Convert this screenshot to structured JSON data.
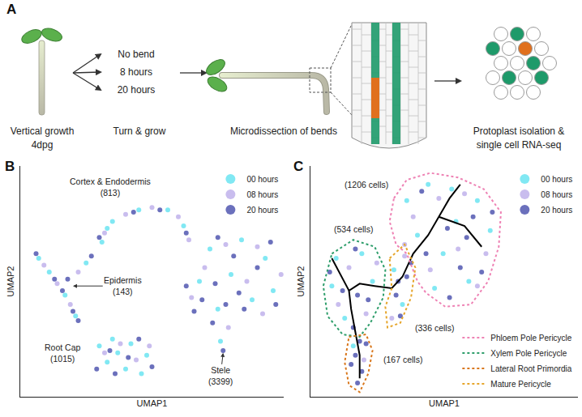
{
  "panel_labels": [
    "A",
    "B",
    "C"
  ],
  "diagram": {
    "vertical": [
      "Vertical growth",
      "4dpg"
    ],
    "conditions": [
      "No bend",
      "8 hours",
      "20 hours"
    ],
    "turn": [
      "Turn & grow"
    ],
    "dissect": [
      "Microdissection of bends"
    ],
    "sequencing": [
      "Protoplast isolation &",
      "single cell RNA-seq"
    ]
  },
  "chart_data": [
    {
      "type": "scatter",
      "xlabel": "UMAP1",
      "ylabel": "UMAP2",
      "xlim": [
        0,
        10
      ],
      "ylim": [
        0,
        10
      ],
      "xticks": [],
      "yticks": [],
      "tick_labels": false,
      "grid": false,
      "legend": "top right",
      "marker": "circle",
      "series": [
        {
          "name": "00 hours",
          "color": "#73e5f2",
          "x": [
            3.1,
            3.5,
            4.5,
            5.6,
            6.2,
            3.3,
            0.7,
            1.1,
            2.5,
            1.7,
            2.1,
            3.0,
            3.5,
            4.2,
            4.8,
            3.3,
            4.0,
            4.6,
            3.7,
            7.2,
            8.4,
            9.3,
            6.8,
            8.0,
            9.6,
            7.5,
            7.6,
            8.8
          ],
          "y": [
            6.7,
            7.6,
            8.1,
            8.1,
            7.4,
            7.3,
            6.0,
            5.4,
            5.8,
            4.4,
            3.5,
            2.2,
            2.5,
            2.3,
            1.8,
            1.5,
            1.2,
            1.0,
            1.9,
            6.4,
            6.8,
            6.0,
            5.0,
            5.3,
            4.6,
            3.8,
            2.4,
            4.2
          ]
        },
        {
          "name": "08 hours",
          "color": "#c3b6ec",
          "x": [
            3.2,
            4.0,
            5.0,
            6.0,
            6.4,
            0.9,
            1.4,
            2.2,
            1.9,
            3.2,
            4.4,
            3.8,
            4.9,
            7.8,
            9.0,
            7.0,
            8.6,
            9.9,
            6.5,
            7.9,
            9.2
          ],
          "y": [
            7.1,
            7.9,
            8.2,
            7.8,
            6.8,
            5.7,
            4.9,
            5.4,
            4.0,
            1.9,
            1.6,
            2.3,
            2.2,
            6.6,
            6.5,
            5.6,
            5.0,
            5.3,
            4.3,
            3.0,
            3.6
          ]
        },
        {
          "name": "20 hours",
          "color": "#5b61b5",
          "x": [
            3.0,
            4.3,
            5.3,
            6.3,
            0.6,
            1.3,
            1.8,
            2.7,
            1.6,
            2.0,
            2.2,
            2.9,
            3.6,
            4.1,
            4.5,
            3.4,
            5.0,
            7.5,
            8.1,
            9.5,
            6.3,
            7.4,
            8.3,
            9.0,
            6.9,
            7.8,
            9.7,
            7.3,
            7.7,
            8.5,
            6.6
          ],
          "y": [
            6.9,
            8.0,
            8.1,
            7.1,
            6.2,
            5.1,
            5.1,
            6.1,
            4.6,
            3.7,
            3.3,
            1.2,
            1.0,
            1.7,
            2.5,
            2.0,
            1.3,
            6.9,
            6.1,
            6.7,
            4.8,
            4.9,
            4.5,
            5.6,
            4.2,
            4.0,
            4.0,
            3.2,
            2.0,
            3.8,
            3.7
          ]
        }
      ],
      "annotations": [
        {
          "lines": [
            "Cortex & Endodermis",
            "(813)"
          ],
          "at": [
            3.4,
            9.1
          ]
        },
        {
          "lines": [
            "Epidermis",
            "(143)"
          ],
          "at": [
            3.9,
            4.8
          ],
          "arrow_to": [
            2.0,
            4.8
          ]
        },
        {
          "lines": [
            "Root Cap",
            "(1015)"
          ],
          "at": [
            1.6,
            1.9
          ]
        },
        {
          "lines": [
            "Stele",
            "(3399)"
          ],
          "at": [
            7.6,
            0.9
          ],
          "arrow_to": [
            7.7,
            1.9
          ]
        }
      ]
    },
    {
      "type": "scatter",
      "xlabel": "UMAP1",
      "ylabel": "UMAP2",
      "xlim": [
        0,
        12.5
      ],
      "ylim": [
        0,
        10
      ],
      "xticks": [],
      "yticks": [],
      "tick_labels": false,
      "grid": false,
      "legend": "top right",
      "marker": "circle",
      "series": [
        {
          "name": "00 hours",
          "color": "#73e5f2",
          "x": [
            4.5,
            5.5,
            6.6,
            7.8,
            8.4,
            5.0,
            6.2,
            7.4,
            5.8,
            6.8,
            1.2,
            2.4,
            1.0,
            2.9,
            1.6,
            2.0,
            3.9,
            4.3
          ],
          "y": [
            8.5,
            9.2,
            9.0,
            8.5,
            7.2,
            7.0,
            6.2,
            5.0,
            4.7,
            7.6,
            6.0,
            6.2,
            4.8,
            5.0,
            3.4,
            2.2,
            5.5,
            4.0
          ]
        },
        {
          "name": "08 hours",
          "color": "#c3b6ec",
          "x": [
            4.8,
            6.0,
            7.2,
            8.2,
            5.6,
            6.9,
            7.8,
            4.4,
            1.8,
            1.3,
            2.6,
            3.1,
            2.5,
            4.4,
            3.8
          ],
          "y": [
            7.8,
            8.6,
            8.8,
            6.2,
            5.5,
            6.4,
            4.8,
            6.6,
            5.6,
            4.0,
            3.6,
            5.8,
            1.6,
            6.1,
            3.4
          ]
        },
        {
          "name": "20 hours",
          "color": "#5b61b5",
          "x": [
            5.2,
            6.4,
            7.6,
            8.5,
            5.4,
            7.0,
            6.5,
            4.7,
            7.3,
            8.0,
            2.1,
            0.9,
            2.2,
            1.5,
            2.7,
            2.0,
            2.2,
            2.4,
            1.9,
            2.6,
            2.1,
            2.3,
            4.1,
            4.5,
            4.0,
            4.2
          ],
          "y": [
            8.9,
            7.3,
            7.8,
            8.0,
            6.2,
            5.6,
            4.3,
            5.8,
            6.9,
            5.4,
            6.4,
            5.4,
            4.4,
            4.6,
            4.2,
            3.0,
            0.6,
            1.1,
            1.4,
            2.3,
            1.8,
            2.4,
            5.0,
            5.2,
            4.4,
            3.5
          ]
        },
        {
          "type": "line",
          "color": "#000000",
          "x": [
            2.3,
            2.3,
            2.1,
            1.9,
            1.8,
            2.3,
            3.0,
            3.8,
            4.3,
            4.8,
            5.5,
            6.0,
            6.5,
            7.0,
            null,
            6.0,
            7.2,
            8.0,
            null,
            1.8,
            1.3,
            1.0
          ],
          "y": [
            0.8,
            1.8,
            2.8,
            3.8,
            4.6,
            4.9,
            4.8,
            4.7,
            5.2,
            6.2,
            7.0,
            7.8,
            8.6,
            9.2,
            null,
            7.8,
            7.4,
            6.5,
            null,
            4.6,
            5.5,
            6.0
          ]
        },
        {
          "name": "Phloem Pole Pericycle",
          "type": "line",
          "line_style": "dotted",
          "color": "#ee82b4",
          "legend": "bottom right",
          "x": [
            3.9,
            4.5,
            5.6,
            6.9,
            8.1,
            8.9,
            8.8,
            8.3,
            7.5,
            6.3,
            5.4,
            5.0,
            4.5,
            4.0,
            3.7,
            3.9
          ],
          "y": [
            8.6,
            9.4,
            9.7,
            9.5,
            9.0,
            8.0,
            6.5,
            5.0,
            4.0,
            3.9,
            4.5,
            5.0,
            6.2,
            6.6,
            7.6,
            8.6
          ]
        },
        {
          "name": "Xylem Pole Pericycle",
          "type": "line",
          "line_style": "dotted",
          "color": "#2e9e6b",
          "legend": "bottom right",
          "x": [
            1.0,
            2.0,
            3.0,
            3.5,
            3.4,
            2.8,
            2.3,
            1.5,
            0.8,
            0.6,
            1.0
          ],
          "y": [
            6.2,
            6.8,
            6.5,
            5.5,
            4.3,
            3.2,
            2.6,
            2.7,
            3.5,
            4.8,
            6.2
          ]
        },
        {
          "name": "Lateral Root Primordia",
          "type": "line",
          "line_style": "dotted",
          "color": "#d9771c",
          "legend": "bottom right",
          "x": [
            1.8,
            2.6,
            2.9,
            2.7,
            2.3,
            1.8,
            1.6,
            1.8
          ],
          "y": [
            2.6,
            2.7,
            2.0,
            1.0,
            0.2,
            0.5,
            1.5,
            2.6
          ]
        },
        {
          "name": "Mature Pericycle",
          "type": "line",
          "line_style": "dotted",
          "color": "#e6a52a",
          "legend": "bottom right",
          "x": [
            3.7,
            4.4,
            4.9,
            4.7,
            4.2,
            3.6,
            3.5,
            3.8,
            3.7
          ],
          "y": [
            6.0,
            6.6,
            5.6,
            4.3,
            3.2,
            3.0,
            3.9,
            4.7,
            6.0
          ]
        }
      ],
      "annotations": [
        {
          "lines": [
            "(1206 cells)"
          ],
          "at": [
            2.6,
            9.2
          ]
        },
        {
          "lines": [
            "(534 cells)"
          ],
          "at": [
            2.0,
            7.25
          ]
        },
        {
          "lines": [
            "(336 cells)"
          ],
          "at": [
            5.8,
            3.0
          ]
        },
        {
          "lines": [
            "(167 cells)"
          ],
          "at": [
            4.3,
            1.6
          ]
        }
      ]
    }
  ]
}
